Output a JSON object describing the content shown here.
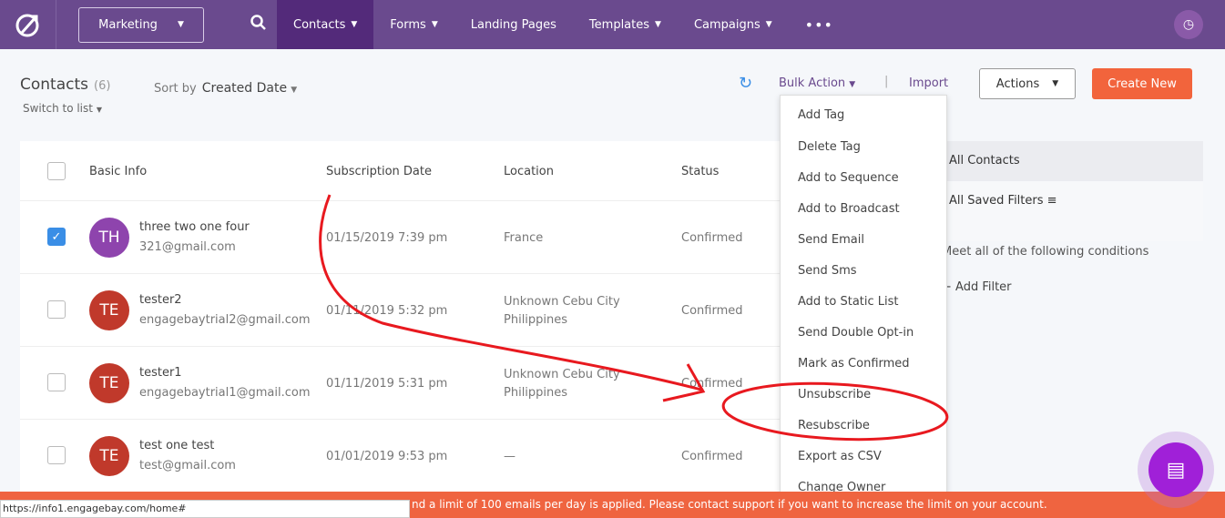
{
  "nav": {
    "workspace": "Marketing",
    "items": [
      {
        "label": "Contacts",
        "active": true,
        "dropdown": true
      },
      {
        "label": "Forms",
        "dropdown": true
      },
      {
        "label": "Landing Pages",
        "dropdown": false
      },
      {
        "label": "Templates",
        "dropdown": true
      },
      {
        "label": "Campaigns",
        "dropdown": true
      }
    ],
    "more": "•••"
  },
  "header": {
    "title": "Contacts",
    "count": "(6)",
    "sort_label": "Sort by",
    "sort_value": "Created Date",
    "switch": "Switch to list",
    "bulk": "Bulk Action",
    "sep": "|",
    "import": "Import",
    "actions": "Actions",
    "create": "Create New"
  },
  "table": {
    "headers": [
      "Basic Info",
      "Subscription Date",
      "Location",
      "Status"
    ],
    "rows": [
      {
        "initials": "TH",
        "color": "#8e44ad",
        "name": "three two one four",
        "email": "321@gmail.com",
        "date": "01/15/2019 7:39 pm",
        "loc1": "France",
        "loc2": "",
        "status": "Confirmed",
        "checked": true
      },
      {
        "initials": "TE",
        "color": "#c0392b",
        "name": "tester2",
        "email": "engagebaytrial2@gmail.com",
        "date": "01/11/2019 5:32 pm",
        "loc1": "Unknown Cebu City",
        "loc2": "Philippines",
        "status": "Confirmed",
        "checked": false
      },
      {
        "initials": "TE",
        "color": "#c0392b",
        "name": "tester1",
        "email": "engagebaytrial1@gmail.com",
        "date": "01/11/2019 5:31 pm",
        "loc1": "Unknown Cebu City",
        "loc2": "Philippines",
        "status": "Confirmed",
        "checked": false
      },
      {
        "initials": "TE",
        "color": "#c0392b",
        "name": "test one test",
        "email": "test@gmail.com",
        "date": "01/01/2019 9:53 pm",
        "loc1": "—",
        "loc2": "",
        "status": "Confirmed",
        "checked": false
      }
    ]
  },
  "bulk_menu": [
    "Add Tag",
    "Delete Tag",
    "Add to Sequence",
    "Add to Broadcast",
    "Send Email",
    "Send Sms",
    "Add to Static List",
    "Send Double Opt-in",
    "Mark as Confirmed",
    "Unsubscribe",
    "Resubscribe",
    "Export as CSV",
    "Change Owner"
  ],
  "filters": {
    "all": "All Contacts",
    "saved": "All Saved Filters",
    "meet": "Meet all of the following conditions",
    "add": "Add Filter"
  },
  "banner": "nd a limit of 100 emails per day is applied. Please contact support if you want to increase the limit on your account.",
  "status_url": "https://info1.engagebay.com/home#",
  "colors": {
    "nav": "#6a4a8e",
    "accent": "#f2643c",
    "annotation": "#e8191f"
  }
}
